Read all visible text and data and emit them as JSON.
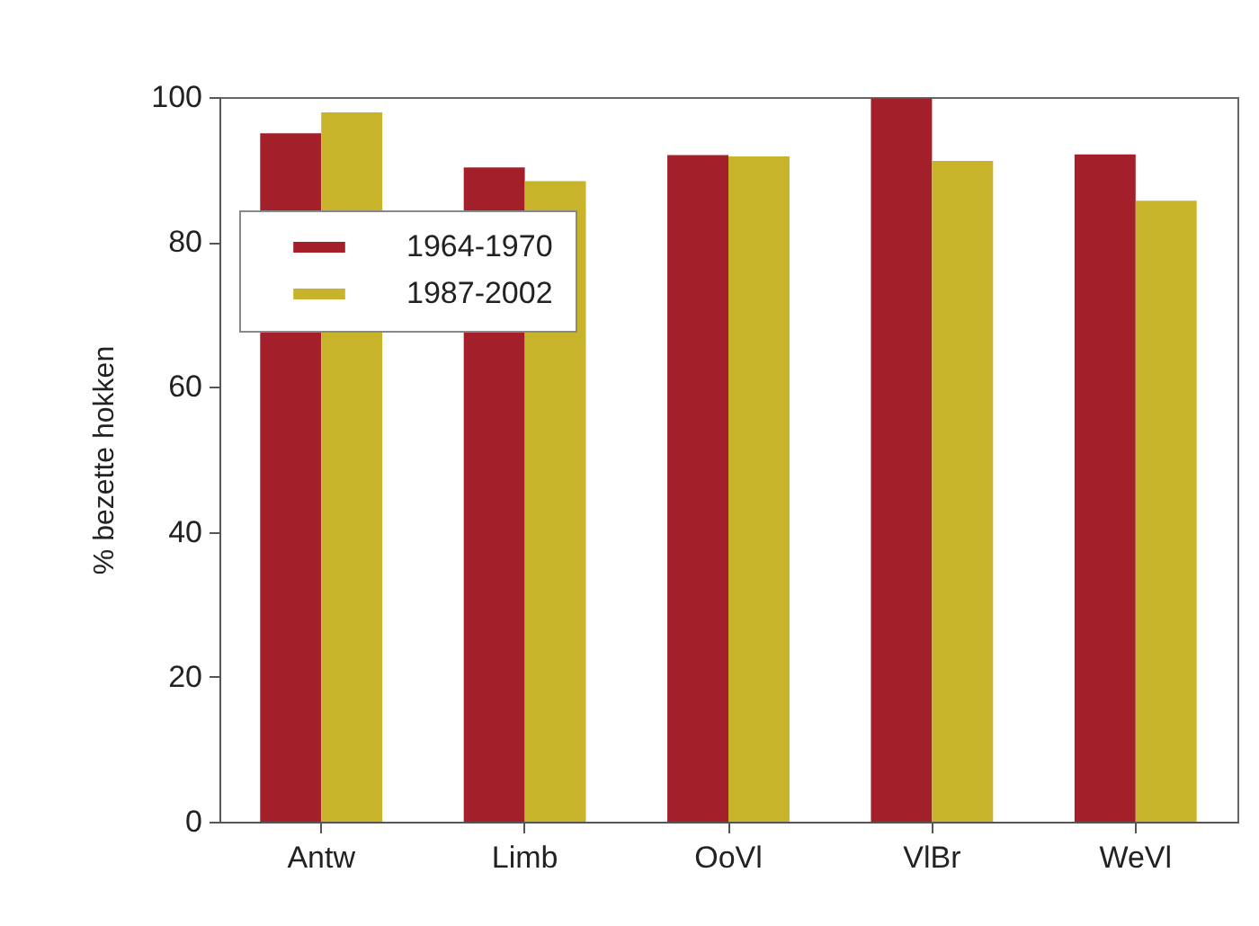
{
  "chart_data": {
    "type": "bar",
    "ylabel": "% bezette hokken",
    "categories": [
      "Antw",
      "Limb",
      "OoVl",
      "VlBr",
      "WeVl"
    ],
    "series": [
      {
        "name": "1964-1970",
        "color": "#a3202a",
        "values": [
          95,
          90.3,
          92,
          99.8,
          92.1
        ]
      },
      {
        "name": "1987-2002",
        "color": "#c8b42a",
        "values": [
          97.9,
          88.4,
          91.8,
          91.2,
          85.7
        ]
      }
    ],
    "ylim": [
      0,
      100
    ],
    "yticks": [
      0,
      20,
      40,
      60,
      80,
      100
    ],
    "grid": false,
    "legend": "top left"
  }
}
